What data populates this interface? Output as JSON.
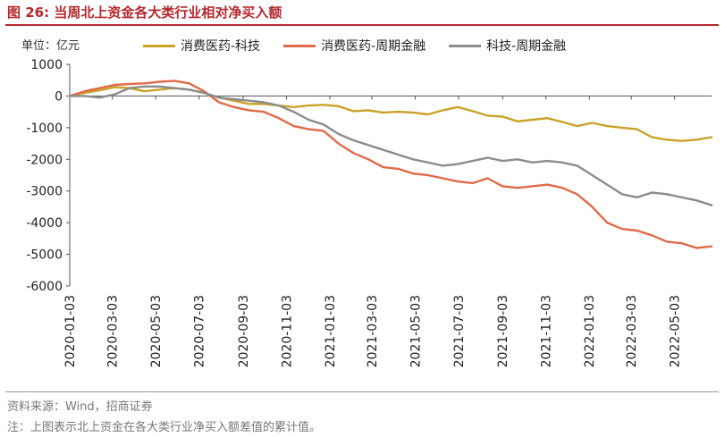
{
  "header": {
    "figure_label": "图 26:",
    "title": "当周北上资金各大类行业相对净买入额"
  },
  "unit_label": "单位：亿元",
  "source": "资料来源：Wind，招商证券",
  "note": "注：上图表示北上资金在各大类行业净买入额差值的累计值。",
  "colors": {
    "title": "#b4282e",
    "series1": "#c9a227",
    "series2": "#e06a4a",
    "series3": "#8c8c8c"
  },
  "chart_data": {
    "type": "line",
    "title": "当周北上资金各大类行业相对净买入额",
    "ylabel": "单位：亿元",
    "xlabel": "",
    "ylim": [
      -6000,
      1000
    ],
    "yticks": [
      1000,
      0,
      -1000,
      -2000,
      -3000,
      -4000,
      -5000,
      -6000
    ],
    "ytick_labels": [
      "1000",
      "0",
      "-1000",
      "-2000",
      "-3000",
      "-4000",
      "-5000",
      "-6000"
    ],
    "x_start": "2020-01-03",
    "x_end": "2022-06-24",
    "x_ticks": [
      "2020-01-03",
      "2020-03-03",
      "2020-05-03",
      "2020-07-03",
      "2020-09-03",
      "2020-11-03",
      "2021-01-03",
      "2021-03-03",
      "2021-05-03",
      "2021-07-03",
      "2021-09-03",
      "2021-11-03",
      "2022-01-03",
      "2022-03-03",
      "2022-05-03"
    ],
    "grid": false,
    "legend_position": "top",
    "series": [
      {
        "name": "消费医药-科技",
        "color": "#c9a227",
        "points": [
          [
            "2020-01-03",
            0
          ],
          [
            "2020-01-24",
            100
          ],
          [
            "2020-02-14",
            180
          ],
          [
            "2020-03-06",
            280
          ],
          [
            "2020-03-27",
            250
          ],
          [
            "2020-04-17",
            150
          ],
          [
            "2020-05-08",
            200
          ],
          [
            "2020-05-29",
            250
          ],
          [
            "2020-06-19",
            200
          ],
          [
            "2020-07-10",
            100
          ],
          [
            "2020-07-31",
            -50
          ],
          [
            "2020-08-21",
            -150
          ],
          [
            "2020-09-11",
            -250
          ],
          [
            "2020-10-02",
            -250
          ],
          [
            "2020-10-23",
            -300
          ],
          [
            "2020-11-13",
            -350
          ],
          [
            "2020-12-04",
            -300
          ],
          [
            "2020-12-25",
            -280
          ],
          [
            "2021-01-15",
            -320
          ],
          [
            "2021-02-05",
            -480
          ],
          [
            "2021-02-26",
            -450
          ],
          [
            "2021-03-19",
            -520
          ],
          [
            "2021-04-09",
            -500
          ],
          [
            "2021-04-30",
            -520
          ],
          [
            "2021-05-21",
            -580
          ],
          [
            "2021-06-11",
            -450
          ],
          [
            "2021-07-02",
            -350
          ],
          [
            "2021-07-23",
            -480
          ],
          [
            "2021-08-13",
            -620
          ],
          [
            "2021-09-03",
            -650
          ],
          [
            "2021-09-24",
            -800
          ],
          [
            "2021-10-15",
            -750
          ],
          [
            "2021-11-05",
            -700
          ],
          [
            "2021-11-26",
            -820
          ],
          [
            "2021-12-17",
            -950
          ],
          [
            "2022-01-07",
            -850
          ],
          [
            "2022-01-28",
            -950
          ],
          [
            "2022-02-18",
            -1000
          ],
          [
            "2022-03-11",
            -1050
          ],
          [
            "2022-04-01",
            -1300
          ],
          [
            "2022-04-22",
            -1380
          ],
          [
            "2022-05-13",
            -1420
          ],
          [
            "2022-06-03",
            -1380
          ],
          [
            "2022-06-24",
            -1300
          ]
        ]
      },
      {
        "name": "消费医药-周期金融",
        "color": "#e06a4a",
        "points": [
          [
            "2020-01-03",
            0
          ],
          [
            "2020-01-24",
            150
          ],
          [
            "2020-02-14",
            250
          ],
          [
            "2020-03-06",
            350
          ],
          [
            "2020-03-27",
            380
          ],
          [
            "2020-04-17",
            400
          ],
          [
            "2020-05-08",
            450
          ],
          [
            "2020-05-29",
            480
          ],
          [
            "2020-06-19",
            400
          ],
          [
            "2020-07-10",
            150
          ],
          [
            "2020-07-31",
            -200
          ],
          [
            "2020-08-21",
            -350
          ],
          [
            "2020-09-11",
            -450
          ],
          [
            "2020-10-02",
            -500
          ],
          [
            "2020-10-23",
            -700
          ],
          [
            "2020-11-13",
            -950
          ],
          [
            "2020-12-04",
            -1050
          ],
          [
            "2020-12-25",
            -1100
          ],
          [
            "2021-01-15",
            -1500
          ],
          [
            "2021-02-05",
            -1800
          ],
          [
            "2021-02-26",
            -2000
          ],
          [
            "2021-03-19",
            -2250
          ],
          [
            "2021-04-09",
            -2300
          ],
          [
            "2021-04-30",
            -2450
          ],
          [
            "2021-05-21",
            -2500
          ],
          [
            "2021-06-11",
            -2600
          ],
          [
            "2021-07-02",
            -2700
          ],
          [
            "2021-07-23",
            -2750
          ],
          [
            "2021-08-13",
            -2600
          ],
          [
            "2021-09-03",
            -2850
          ],
          [
            "2021-09-24",
            -2900
          ],
          [
            "2021-10-15",
            -2850
          ],
          [
            "2021-11-05",
            -2800
          ],
          [
            "2021-11-26",
            -2900
          ],
          [
            "2021-12-17",
            -3100
          ],
          [
            "2022-01-07",
            -3500
          ],
          [
            "2022-01-28",
            -4000
          ],
          [
            "2022-02-18",
            -4200
          ],
          [
            "2022-03-11",
            -4250
          ],
          [
            "2022-04-01",
            -4400
          ],
          [
            "2022-04-22",
            -4600
          ],
          [
            "2022-05-13",
            -4650
          ],
          [
            "2022-06-03",
            -4800
          ],
          [
            "2022-06-24",
            -4750
          ]
        ]
      },
      {
        "name": "科技-周期金融",
        "color": "#8c8c8c",
        "points": [
          [
            "2020-01-03",
            0
          ],
          [
            "2020-01-24",
            0
          ],
          [
            "2020-02-14",
            -50
          ],
          [
            "2020-03-06",
            50
          ],
          [
            "2020-03-27",
            250
          ],
          [
            "2020-04-17",
            300
          ],
          [
            "2020-05-08",
            300
          ],
          [
            "2020-05-29",
            250
          ],
          [
            "2020-06-19",
            200
          ],
          [
            "2020-07-10",
            100
          ],
          [
            "2020-07-31",
            -50
          ],
          [
            "2020-08-21",
            -100
          ],
          [
            "2020-09-11",
            -150
          ],
          [
            "2020-10-02",
            -200
          ],
          [
            "2020-10-23",
            -300
          ],
          [
            "2020-11-13",
            -500
          ],
          [
            "2020-12-04",
            -750
          ],
          [
            "2020-12-25",
            -900
          ],
          [
            "2021-01-15",
            -1200
          ],
          [
            "2021-02-05",
            -1400
          ],
          [
            "2021-02-26",
            -1550
          ],
          [
            "2021-03-19",
            -1700
          ],
          [
            "2021-04-09",
            -1850
          ],
          [
            "2021-04-30",
            -2000
          ],
          [
            "2021-05-21",
            -2100
          ],
          [
            "2021-06-11",
            -2200
          ],
          [
            "2021-07-02",
            -2150
          ],
          [
            "2021-07-23",
            -2050
          ],
          [
            "2021-08-13",
            -1950
          ],
          [
            "2021-09-03",
            -2050
          ],
          [
            "2021-09-24",
            -2000
          ],
          [
            "2021-10-15",
            -2100
          ],
          [
            "2021-11-05",
            -2050
          ],
          [
            "2021-11-26",
            -2100
          ],
          [
            "2021-12-17",
            -2200
          ],
          [
            "2022-01-07",
            -2500
          ],
          [
            "2022-01-28",
            -2800
          ],
          [
            "2022-02-18",
            -3100
          ],
          [
            "2022-03-11",
            -3200
          ],
          [
            "2022-04-01",
            -3050
          ],
          [
            "2022-04-22",
            -3100
          ],
          [
            "2022-05-13",
            -3200
          ],
          [
            "2022-06-03",
            -3300
          ],
          [
            "2022-06-24",
            -3450
          ]
        ]
      }
    ]
  }
}
